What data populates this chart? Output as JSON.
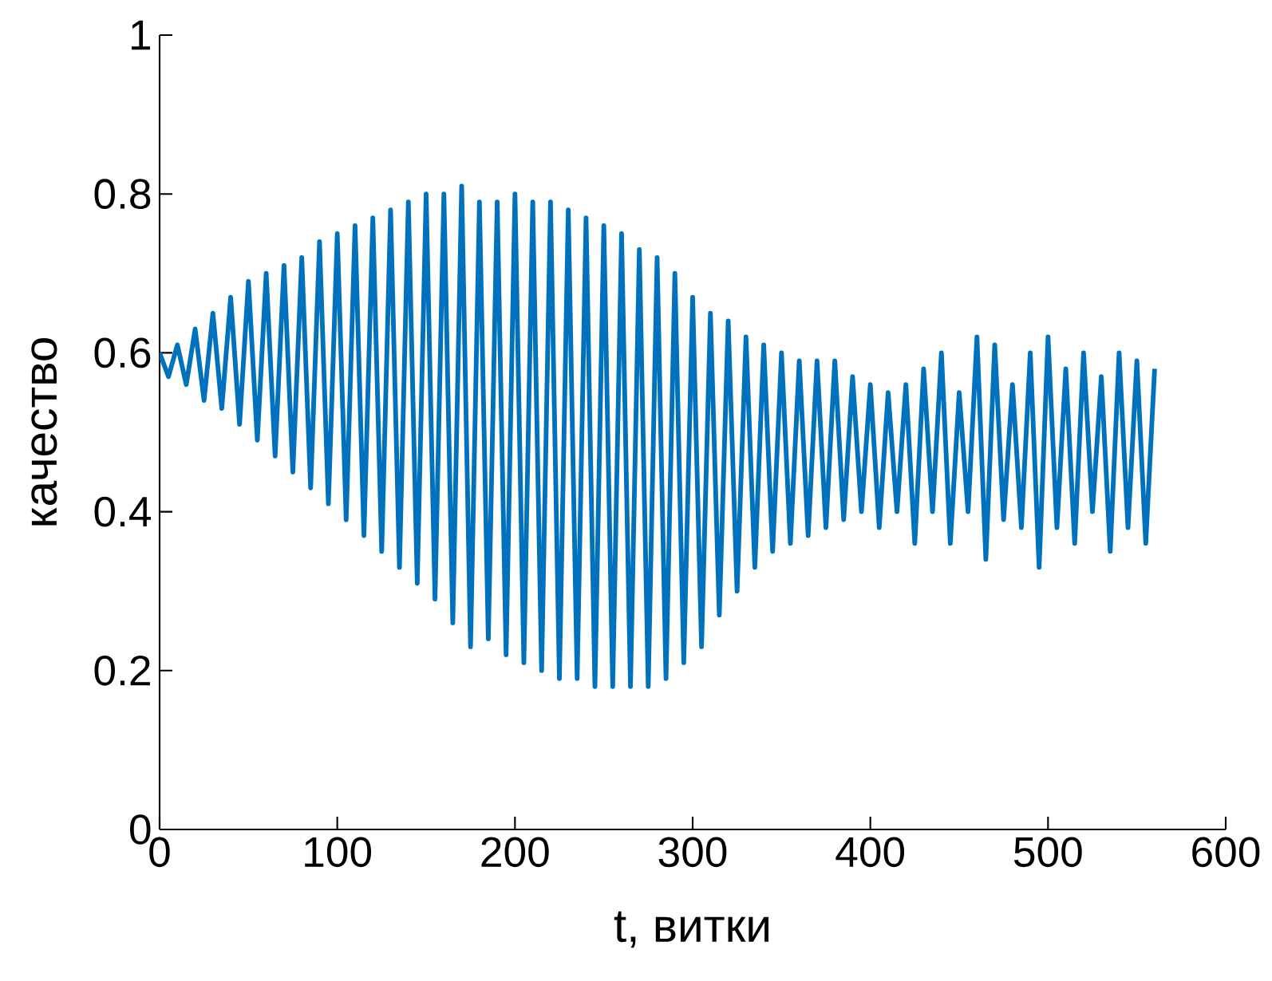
{
  "chart_data": {
    "type": "line",
    "xlabel": "t, витки",
    "ylabel": "качество",
    "xlim": [
      0,
      600
    ],
    "ylim": [
      0,
      1
    ],
    "xticks": [
      0,
      100,
      200,
      300,
      400,
      500,
      600
    ],
    "yticks": [
      0,
      0.2,
      0.4,
      0.6,
      0.8,
      1
    ],
    "grid": false,
    "marker": "none",
    "line_style": "solid",
    "series": [
      {
        "color": "#0072bd",
        "x": [
          0,
          5,
          10,
          15,
          20,
          25,
          30,
          35,
          40,
          45,
          50,
          55,
          60,
          65,
          70,
          75,
          80,
          85,
          90,
          95,
          100,
          105,
          110,
          115,
          120,
          125,
          130,
          135,
          140,
          145,
          150,
          155,
          160,
          165,
          170,
          175,
          180,
          185,
          190,
          195,
          200,
          205,
          210,
          215,
          220,
          225,
          230,
          235,
          240,
          245,
          250,
          255,
          260,
          265,
          270,
          275,
          280,
          285,
          290,
          295,
          300,
          305,
          310,
          315,
          320,
          325,
          330,
          335,
          340,
          345,
          350,
          355,
          360,
          365,
          370,
          375,
          380,
          385,
          390,
          395,
          400,
          405,
          410,
          415,
          420,
          425,
          430,
          435,
          440,
          445,
          450,
          455,
          460,
          465,
          470,
          475,
          480,
          485,
          490,
          495,
          500,
          505,
          510,
          515,
          520,
          525,
          530,
          535,
          540,
          545,
          550,
          555,
          560
        ],
        "values": [
          0.6,
          0.57,
          0.61,
          0.56,
          0.63,
          0.54,
          0.65,
          0.53,
          0.67,
          0.51,
          0.69,
          0.49,
          0.7,
          0.47,
          0.71,
          0.45,
          0.72,
          0.43,
          0.74,
          0.41,
          0.75,
          0.39,
          0.76,
          0.37,
          0.77,
          0.35,
          0.78,
          0.33,
          0.79,
          0.31,
          0.8,
          0.29,
          0.8,
          0.26,
          0.81,
          0.23,
          0.79,
          0.24,
          0.79,
          0.22,
          0.8,
          0.21,
          0.79,
          0.2,
          0.79,
          0.19,
          0.78,
          0.19,
          0.77,
          0.18,
          0.76,
          0.18,
          0.75,
          0.18,
          0.73,
          0.18,
          0.72,
          0.19,
          0.7,
          0.21,
          0.67,
          0.23,
          0.65,
          0.27,
          0.64,
          0.3,
          0.62,
          0.33,
          0.61,
          0.35,
          0.6,
          0.36,
          0.59,
          0.37,
          0.59,
          0.38,
          0.59,
          0.39,
          0.57,
          0.4,
          0.56,
          0.38,
          0.55,
          0.4,
          0.56,
          0.36,
          0.58,
          0.4,
          0.6,
          0.36,
          0.55,
          0.4,
          0.62,
          0.34,
          0.61,
          0.39,
          0.56,
          0.38,
          0.6,
          0.33,
          0.62,
          0.38,
          0.58,
          0.36,
          0.6,
          0.4,
          0.57,
          0.35,
          0.6,
          0.38,
          0.59,
          0.36,
          0.58
        ]
      }
    ]
  }
}
